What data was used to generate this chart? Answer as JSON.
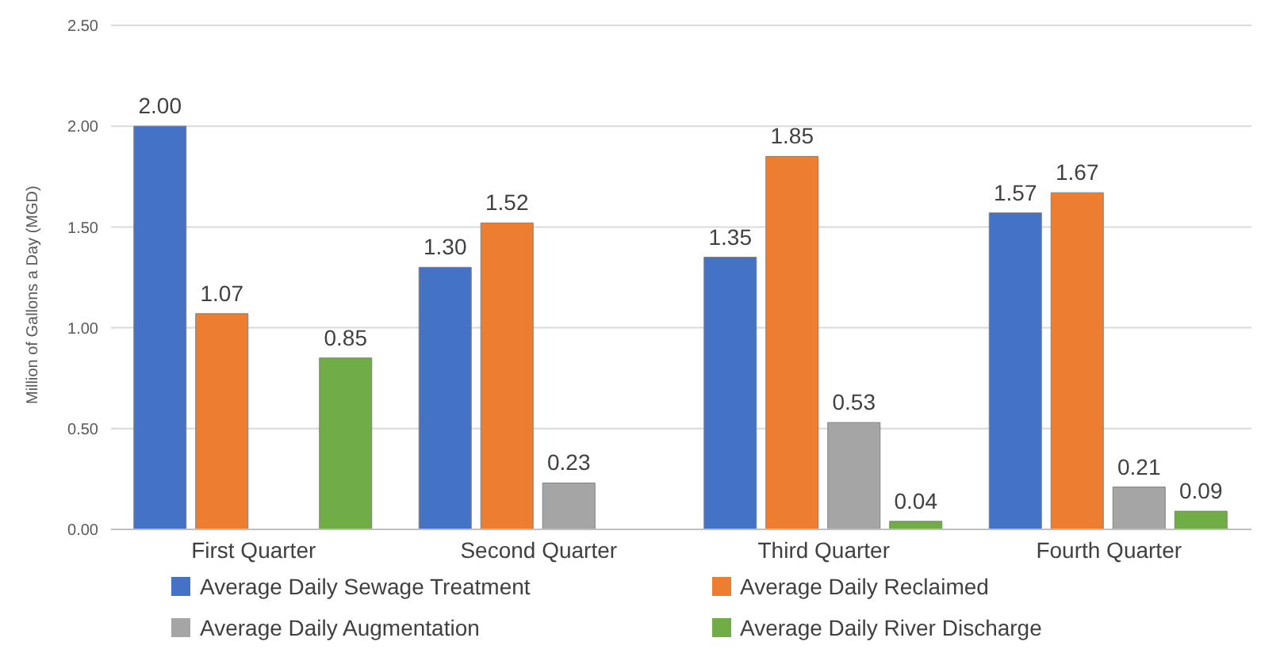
{
  "chart_data": {
    "type": "bar",
    "ylabel": "Million of Gallons a Day (MGD)",
    "categories": [
      "First Quarter",
      "Second Quarter",
      "Third Quarter",
      "Fourth Quarter"
    ],
    "series": [
      {
        "name": "Average Daily Sewage Treatment",
        "color": "#4472c4",
        "values": [
          2.0,
          1.3,
          1.35,
          1.57
        ],
        "value_labels": [
          "2.00",
          "1.30",
          "1.35",
          "1.57"
        ]
      },
      {
        "name": "Average Daily Reclaimed",
        "color": "#ed7d31",
        "values": [
          1.07,
          1.52,
          1.85,
          1.67
        ],
        "value_labels": [
          "1.07",
          "1.52",
          "1.85",
          "1.67"
        ]
      },
      {
        "name": "Average Daily Augmentation",
        "color": "#a5a5a5",
        "values": [
          null,
          0.23,
          0.53,
          0.21
        ],
        "value_labels": [
          null,
          "0.23",
          "0.53",
          "0.21"
        ]
      },
      {
        "name": "Average Daily River Discharge",
        "color": "#70ad47",
        "values": [
          0.85,
          null,
          0.04,
          0.09
        ],
        "value_labels": [
          "0.85",
          null,
          "0.04",
          "0.09"
        ]
      }
    ],
    "ylim": [
      0,
      2.5
    ],
    "yticks": [
      {
        "value": 0,
        "label": "0.00"
      },
      {
        "value": 0.5,
        "label": "0.50"
      },
      {
        "value": 1,
        "label": "1.00"
      },
      {
        "value": 1.5,
        "label": "1.50"
      },
      {
        "value": 2,
        "label": "2.00"
      },
      {
        "value": 2.5,
        "label": "2.50"
      }
    ],
    "grid": "y",
    "legend": "bottom"
  }
}
